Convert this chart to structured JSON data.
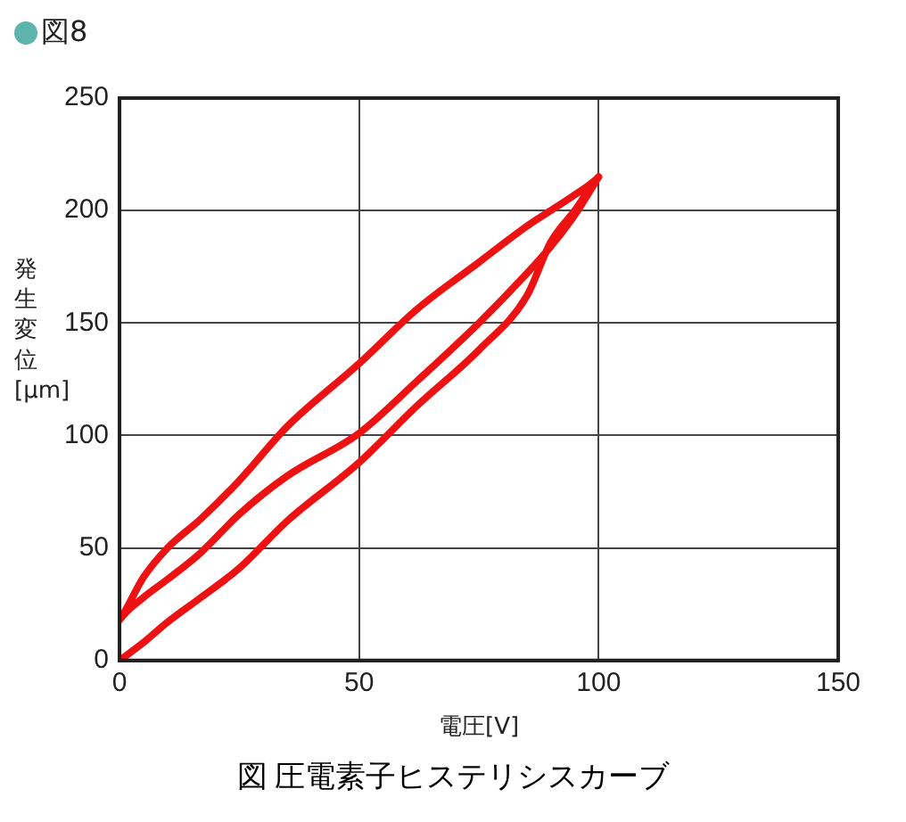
{
  "chart_data": {
    "type": "line",
    "title": "図8",
    "xlabel": "電圧[V]",
    "ylabel": "発生変位[μm]",
    "annotations": [
      "図 圧電素子ヒステリシスカーブ"
    ],
    "series": [
      {
        "color": "#ee1111",
        "x": [
          0,
          5,
          10,
          17,
          25,
          35,
          50,
          62,
          75,
          85,
          90,
          95,
          100,
          95,
          90,
          85,
          75,
          62,
          50,
          35,
          25,
          17,
          10,
          5,
          0,
          5,
          10,
          17,
          25,
          35,
          50,
          62,
          75,
          85,
          90,
          95,
          100
        ],
        "values": [
          0,
          8,
          17,
          28,
          41,
          62,
          88,
          113,
          138,
          162,
          186,
          200,
          215,
          207,
          200,
          193,
          177,
          156,
          132,
          104,
          80,
          63,
          50,
          37,
          18,
          28,
          36,
          48,
          65,
          82,
          101,
          124,
          150,
          172,
          184,
          198,
          215
        ]
      }
    ],
    "xlim": [
      0,
      150
    ],
    "xticks": [
      0,
      50,
      100,
      150
    ],
    "ylim": [
      0,
      250
    ],
    "yticks": [
      0,
      50,
      100,
      150,
      200,
      250
    ],
    "grid": true,
    "legend": false,
    "marker": "none",
    "line_style": "solid"
  }
}
